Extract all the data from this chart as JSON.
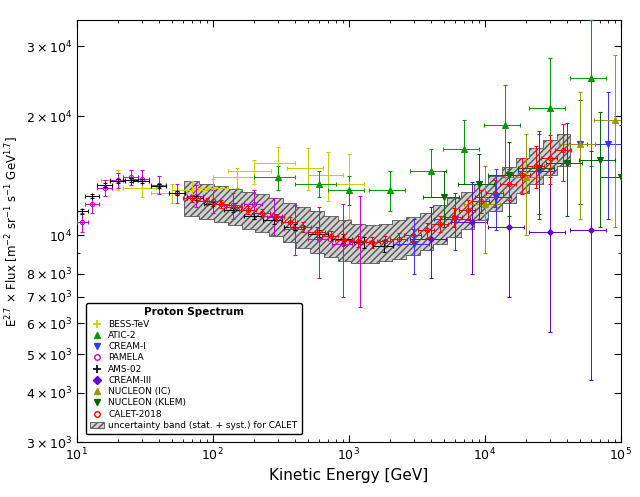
{
  "xlabel": "Kinetic Energy [GeV]",
  "xlim": [
    10,
    100000.0
  ],
  "ylim": [
    3000,
    35000
  ],
  "legend_title": "Proton Spectrum",
  "BESS_TeV": {
    "color": "#cccc00",
    "x": [
      20,
      30,
      50,
      70,
      100,
      150,
      200,
      300,
      500,
      700,
      1000
    ],
    "y": [
      13800,
      13200,
      12800,
      13000,
      13200,
      14000,
      14500,
      15200,
      14800,
      14200,
      13500
    ],
    "xerr_low": [
      5,
      8,
      15,
      20,
      30,
      50,
      70,
      100,
      150,
      200,
      300
    ],
    "xerr_high": [
      5,
      8,
      15,
      20,
      30,
      50,
      70,
      100,
      150,
      200,
      300
    ],
    "yerr_low": [
      800,
      700,
      700,
      700,
      700,
      800,
      1000,
      1500,
      1800,
      2000,
      2500
    ],
    "yerr_high": [
      800,
      700,
      700,
      700,
      700,
      800,
      1000,
      1500,
      1800,
      2000,
      2500
    ]
  },
  "ATIC2": {
    "color": "#009900",
    "x": [
      300,
      600,
      1000,
      2000,
      4000,
      7000,
      14000,
      30000,
      60000
    ],
    "y": [
      14000,
      13500,
      13000,
      13000,
      14500,
      16500,
      19000,
      21000,
      25000
    ],
    "xerr_low": [
      100,
      200,
      300,
      600,
      1200,
      2100,
      4200,
      9000,
      18000
    ],
    "xerr_high": [
      100,
      200,
      300,
      600,
      1200,
      2100,
      4200,
      9000,
      18000
    ],
    "yerr_low": [
      1000,
      1000,
      1100,
      1500,
      2000,
      3000,
      5000,
      7000,
      10000
    ],
    "yerr_high": [
      1000,
      1000,
      1100,
      1500,
      2000,
      3000,
      5000,
      7000,
      10000
    ]
  },
  "CREAM_I": {
    "color": "#3333ff",
    "x": [
      3000,
      6000,
      12000,
      25000,
      50000,
      80000
    ],
    "y": [
      9500,
      11000,
      12500,
      14500,
      17000,
      17000
    ],
    "xerr_low": [
      900,
      1800,
      3600,
      7500,
      15000,
      24000
    ],
    "xerr_high": [
      900,
      1800,
      3600,
      7500,
      15000,
      24000
    ],
    "yerr_low": [
      1500,
      1800,
      2200,
      3500,
      5000,
      6000
    ],
    "yerr_high": [
      1500,
      1800,
      2200,
      3500,
      5000,
      6000
    ]
  },
  "PAMELA": {
    "color": "#cc00cc",
    "x": [
      11,
      13,
      16,
      20,
      25,
      30,
      40,
      55,
      75,
      100,
      140,
      200,
      280,
      400,
      600,
      900,
      1200
    ],
    "y": [
      10800,
      12000,
      13200,
      13800,
      14000,
      13900,
      13400,
      12800,
      12600,
      12200,
      11900,
      12000,
      11200,
      10400,
      9800,
      9500,
      9600
    ],
    "xerr_low": [
      1,
      1.5,
      2,
      2.5,
      3,
      4,
      5,
      7,
      10,
      14,
      20,
      30,
      45,
      65,
      100,
      150,
      200
    ],
    "xerr_high": [
      1,
      1.5,
      2,
      2.5,
      3,
      4,
      5,
      7,
      10,
      14,
      20,
      30,
      45,
      65,
      100,
      150,
      200
    ],
    "yerr_low": [
      600,
      600,
      600,
      600,
      600,
      700,
      700,
      700,
      800,
      800,
      900,
      1000,
      1200,
      1500,
      2000,
      2500,
      3000
    ],
    "yerr_high": [
      600,
      600,
      600,
      600,
      600,
      700,
      700,
      700,
      800,
      800,
      900,
      1000,
      1200,
      1500,
      2000,
      2500,
      3000
    ]
  },
  "AMS02": {
    "color": "#000000",
    "x": [
      11,
      13,
      16,
      20,
      25,
      30,
      40,
      55,
      75,
      100,
      140,
      200,
      280,
      400,
      600,
      900,
      1300,
      1800
    ],
    "y": [
      11500,
      12600,
      13400,
      13700,
      13800,
      13700,
      13300,
      12800,
      12400,
      12000,
      11600,
      11200,
      10900,
      10500,
      10100,
      9800,
      9600,
      9400
    ],
    "xerr_low": [
      1,
      1.5,
      2,
      2.5,
      3,
      4,
      5,
      7,
      10,
      14,
      20,
      30,
      45,
      65,
      100,
      150,
      200,
      300
    ],
    "xerr_high": [
      1,
      1.5,
      2,
      2.5,
      3,
      4,
      5,
      7,
      10,
      14,
      20,
      30,
      45,
      65,
      100,
      150,
      200,
      300
    ],
    "yerr_low": [
      150,
      150,
      150,
      150,
      150,
      150,
      150,
      150,
      150,
      150,
      150,
      200,
      200,
      200,
      200,
      250,
      300,
      350
    ],
    "yerr_high": [
      150,
      150,
      150,
      150,
      150,
      150,
      150,
      150,
      150,
      150,
      150,
      200,
      200,
      200,
      200,
      250,
      300,
      350
    ]
  },
  "CREAM_III": {
    "color": "#6600cc",
    "x": [
      4000,
      8000,
      15000,
      30000,
      60000
    ],
    "y": [
      9800,
      10800,
      10500,
      10200,
      10300
    ],
    "xerr_low": [
      1200,
      2400,
      4500,
      9000,
      18000
    ],
    "xerr_high": [
      1200,
      2400,
      4500,
      9000,
      18000
    ],
    "yerr_low": [
      2000,
      2800,
      3500,
      4500,
      6000
    ],
    "yerr_high": [
      2000,
      2800,
      3500,
      4500,
      6000
    ]
  },
  "NUCLEON_IC": {
    "color": "#999900",
    "x": [
      10000,
      20000,
      50000,
      90000
    ],
    "y": [
      12000,
      14000,
      17000,
      19500
    ],
    "xerr_low": [
      3000,
      6000,
      15000,
      27000
    ],
    "xerr_high": [
      3000,
      6000,
      15000,
      27000
    ],
    "yerr_low": [
      3000,
      4000,
      6000,
      9000
    ],
    "yerr_high": [
      3000,
      4000,
      6000,
      9000
    ]
  },
  "NUCLEON_KLEM": {
    "color": "#006600",
    "x": [
      5000,
      9000,
      15000,
      25000,
      40000,
      70000,
      100000
    ],
    "y": [
      12500,
      13500,
      14200,
      14800,
      15200,
      15500,
      14000
    ],
    "xerr_low": [
      1500,
      2700,
      4500,
      7500,
      12000,
      21000,
      30000
    ],
    "xerr_high": [
      1500,
      2700,
      4500,
      7500,
      12000,
      21000,
      30000
    ],
    "yerr_low": [
      2000,
      2500,
      3000,
      3500,
      4000,
      5000,
      5000
    ],
    "yerr_high": [
      2000,
      2500,
      3000,
      3500,
      4000,
      5000,
      5000
    ]
  },
  "CALET": {
    "color": "#ff0000",
    "x": [
      70,
      90,
      115,
      145,
      183,
      231,
      291,
      367,
      463,
      584,
      736,
      928,
      1170,
      1476,
      1861,
      2346,
      2958,
      3730,
      4703,
      5930,
      7480,
      9428,
      11890,
      14990,
      18900,
      23820,
      30030,
      37870
    ],
    "y": [
      12400,
      12200,
      12000,
      11800,
      11600,
      11400,
      11100,
      10800,
      10500,
      10200,
      9950,
      9750,
      9650,
      9600,
      9650,
      9800,
      10000,
      10300,
      10700,
      11100,
      11600,
      12200,
      12800,
      13500,
      14200,
      15000,
      15700,
      16400
    ],
    "xerr_low": [
      10,
      13,
      16,
      20,
      26,
      32,
      41,
      52,
      65,
      82,
      103,
      130,
      164,
      207,
      261,
      329,
      415,
      523,
      659,
      831,
      1048,
      1321,
      1665,
      2099,
      2646,
      3336,
      4206,
      5304
    ],
    "xerr_high": [
      10,
      13,
      16,
      20,
      26,
      32,
      41,
      52,
      65,
      82,
      103,
      130,
      164,
      207,
      261,
      329,
      415,
      523,
      659,
      831,
      1048,
      1321,
      1665,
      2099,
      2646,
      3336,
      4206,
      5304
    ],
    "yerr_low": [
      250,
      250,
      250,
      250,
      250,
      250,
      250,
      300,
      300,
      300,
      300,
      300,
      300,
      300,
      300,
      350,
      400,
      450,
      500,
      600,
      700,
      800,
      1000,
      1200,
      1500,
      1800,
      2200,
      2700
    ],
    "yerr_high": [
      250,
      250,
      250,
      250,
      250,
      250,
      250,
      300,
      300,
      300,
      300,
      300,
      300,
      300,
      300,
      350,
      400,
      450,
      500,
      600,
      700,
      800,
      1000,
      1200,
      1500,
      1800,
      2200,
      2700
    ]
  },
  "CALET_band_x": [
    70,
    90,
    115,
    145,
    183,
    231,
    291,
    367,
    463,
    584,
    736,
    928,
    1170,
    1476,
    1861,
    2346,
    2958,
    3730,
    4703,
    5930,
    7480,
    9428,
    11890,
    14990,
    18900,
    23820,
    30030,
    37870
  ],
  "CALET_band_ylow": [
    11200,
    11000,
    10800,
    10600,
    10400,
    10200,
    9950,
    9600,
    9300,
    9000,
    8800,
    8600,
    8500,
    8500,
    8600,
    8700,
    8900,
    9200,
    9500,
    9900,
    10400,
    10900,
    11500,
    12100,
    12800,
    13500,
    14200,
    15000
  ],
  "CALET_band_yhigh": [
    13700,
    13500,
    13300,
    13100,
    12900,
    12700,
    12400,
    12100,
    11800,
    11500,
    11200,
    10900,
    10700,
    10600,
    10700,
    10900,
    11100,
    11400,
    11900,
    12400,
    12900,
    13500,
    14100,
    14900,
    15700,
    16600,
    17400,
    18000
  ]
}
